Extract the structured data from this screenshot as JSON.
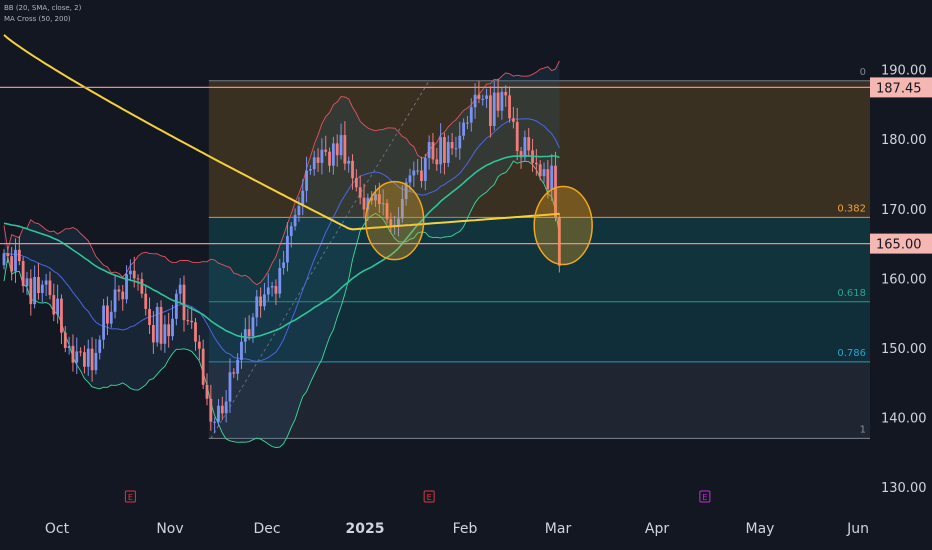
{
  "indicators": [
    "BB (20, SMA, close, 2)",
    "MA Cross (50, 200)"
  ],
  "colors": {
    "background": "#131722",
    "candle_up": "#7b93f0",
    "candle_down": "#f07c7c",
    "ma50": "#2fc59a",
    "ma200": "#f6d23a",
    "bb_mid": "#4a67e0",
    "bb_band": "#e2525f",
    "bb_band_lower_green": "#3ed99b",
    "fib_zone_top": "#5a4520",
    "fib_zone_mid": "#0f4a52",
    "fib_zone_low": "#0f3f4f",
    "fib_zone_bottom": "#2b3240",
    "hline": "#f18a8a",
    "callout_circle": "#f0a71f",
    "event_e": "#e0363e",
    "event_e_purple": "#c52bd6"
  },
  "chart_data": {
    "type": "candlestick",
    "y_axis": {
      "ticks": [
        "190.00",
        "180.00",
        "170.00",
        "160.00",
        "150.00",
        "140.00",
        "130.00"
      ],
      "tick_values": [
        190,
        180,
        170,
        160,
        150,
        140,
        130
      ],
      "range": [
        127,
        198
      ]
    },
    "x_axis": {
      "ticks": [
        "Oct",
        "Nov",
        "Dec",
        "2025",
        "Feb",
        "Mar",
        "Apr",
        "May",
        "Jun"
      ],
      "bold_ticks": [
        "2025"
      ]
    },
    "price_lines": [
      {
        "label": "187.45",
        "value": 187.45
      },
      {
        "label": "165.00",
        "value": 165.0
      }
    ],
    "fibonacci": {
      "start_index": 54,
      "end_index": 151,
      "high": 188.4,
      "low": 137.0,
      "levels": [
        {
          "label": "0",
          "ratio": 0
        },
        {
          "label": "0.382",
          "ratio": 0.382
        },
        {
          "label": "0.618",
          "ratio": 0.618
        },
        {
          "label": "0.786",
          "ratio": 0.786
        },
        {
          "label": "1",
          "ratio": 1
        }
      ]
    },
    "markers": [
      {
        "type": "circle",
        "index": 102,
        "value": 168.3
      },
      {
        "type": "circle",
        "index": 146,
        "value": 167.6
      }
    ],
    "events": [
      {
        "label": "E",
        "index": 33
      },
      {
        "label": "E",
        "index": 111
      },
      {
        "label": "E",
        "index": 183,
        "color": "purple"
      }
    ],
    "ohlc_close": [
      163.6,
      163.2,
      161.0,
      164.1,
      162.5,
      158.9,
      160.0,
      156.3,
      160.2,
      157.9,
      159.1,
      159.7,
      157.6,
      154.8,
      157.1,
      152.2,
      150.0,
      150.3,
      147.9,
      149.5,
      149.4,
      147.3,
      149.9,
      146.8,
      149.3,
      151.2,
      156.1,
      153.5,
      155.2,
      158.4,
      158.1,
      157.0,
      160.6,
      161.1,
      160.0,
      159.9,
      157.8,
      155.6,
      153.3,
      150.8,
      155.9,
      150.6,
      153.4,
      151.7,
      154.2,
      157.8,
      159.1,
      154.0,
      153.9,
      153.7,
      150.9,
      149.9,
      144.7,
      142.7,
      139.4,
      139.4,
      141.7,
      140.6,
      142.3,
      146.5,
      146.3,
      148.3,
      150.9,
      152.7,
      151.7,
      154.4,
      157.4,
      156.0,
      157.7,
      158.7,
      158.9,
      157.8,
      161.5,
      162.3,
      166.1,
      167.5,
      169.1,
      170.4,
      172.6,
      175.5,
      175.7,
      177.4,
      176.6,
      178.5,
      178.2,
      176.2,
      179.4,
      177.7,
      180.6,
      176.5,
      176.9,
      174.4,
      173.1,
      171.6,
      169.9,
      171.6,
      171.2,
      172.1,
      170.7,
      170.8,
      168.5,
      167.6,
      167.7,
      168.6,
      171.4,
      173.8,
      174.8,
      175.5,
      175.5,
      174.0,
      177.3,
      179.6,
      177.1,
      176.4,
      180.3,
      176.6,
      179.6,
      178.7,
      178.7,
      180.5,
      182.4,
      182.4,
      184.6,
      186.4,
      185.8,
      185.8,
      186.3,
      181.9,
      186.7,
      184.1,
      186.8,
      186.3,
      183.0,
      182.5,
      178.3,
      177.4,
      180.3,
      178.4,
      176.6,
      176.4,
      174.7,
      175.7,
      172.8,
      176.2,
      168.8,
      161.8
    ],
    "ohlc_open": [
      161.9,
      163.6,
      163.2,
      161.0,
      164.1,
      162.5,
      158.9,
      160.0,
      156.3,
      160.2,
      157.9,
      159.1,
      159.7,
      157.6,
      154.8,
      157.1,
      152.2,
      150.0,
      150.3,
      147.9,
      149.5,
      149.4,
      147.3,
      149.9,
      146.8,
      149.3,
      151.2,
      156.1,
      153.5,
      155.2,
      158.4,
      158.1,
      157.0,
      160.6,
      161.1,
      160.0,
      159.9,
      157.8,
      155.6,
      153.3,
      150.8,
      155.9,
      150.6,
      153.4,
      151.7,
      154.2,
      157.8,
      159.1,
      154.0,
      153.9,
      153.7,
      150.9,
      149.9,
      144.7,
      142.7,
      139.4,
      139.4,
      141.7,
      140.6,
      142.3,
      146.5,
      146.3,
      148.3,
      150.9,
      152.7,
      151.7,
      154.4,
      157.4,
      156.0,
      157.7,
      158.7,
      158.9,
      157.8,
      161.5,
      162.3,
      166.1,
      167.5,
      169.1,
      170.4,
      172.6,
      175.5,
      175.7,
      177.4,
      176.6,
      178.5,
      178.2,
      176.2,
      179.4,
      177.7,
      180.6,
      176.5,
      176.9,
      174.4,
      173.1,
      171.6,
      169.9,
      171.6,
      171.2,
      172.1,
      170.7,
      170.8,
      168.5,
      167.6,
      167.7,
      168.6,
      171.4,
      173.8,
      174.8,
      175.5,
      175.5,
      174.0,
      177.3,
      179.6,
      177.1,
      176.4,
      180.3,
      176.6,
      179.6,
      178.7,
      178.7,
      180.5,
      182.4,
      182.4,
      184.6,
      186.4,
      185.8,
      185.8,
      186.3,
      181.9,
      186.7,
      184.1,
      186.8,
      186.3,
      183.0,
      182.5,
      178.3,
      177.4,
      180.3,
      178.4,
      176.6,
      176.4,
      174.7,
      175.7,
      172.8,
      176.2,
      168.8
    ]
  }
}
